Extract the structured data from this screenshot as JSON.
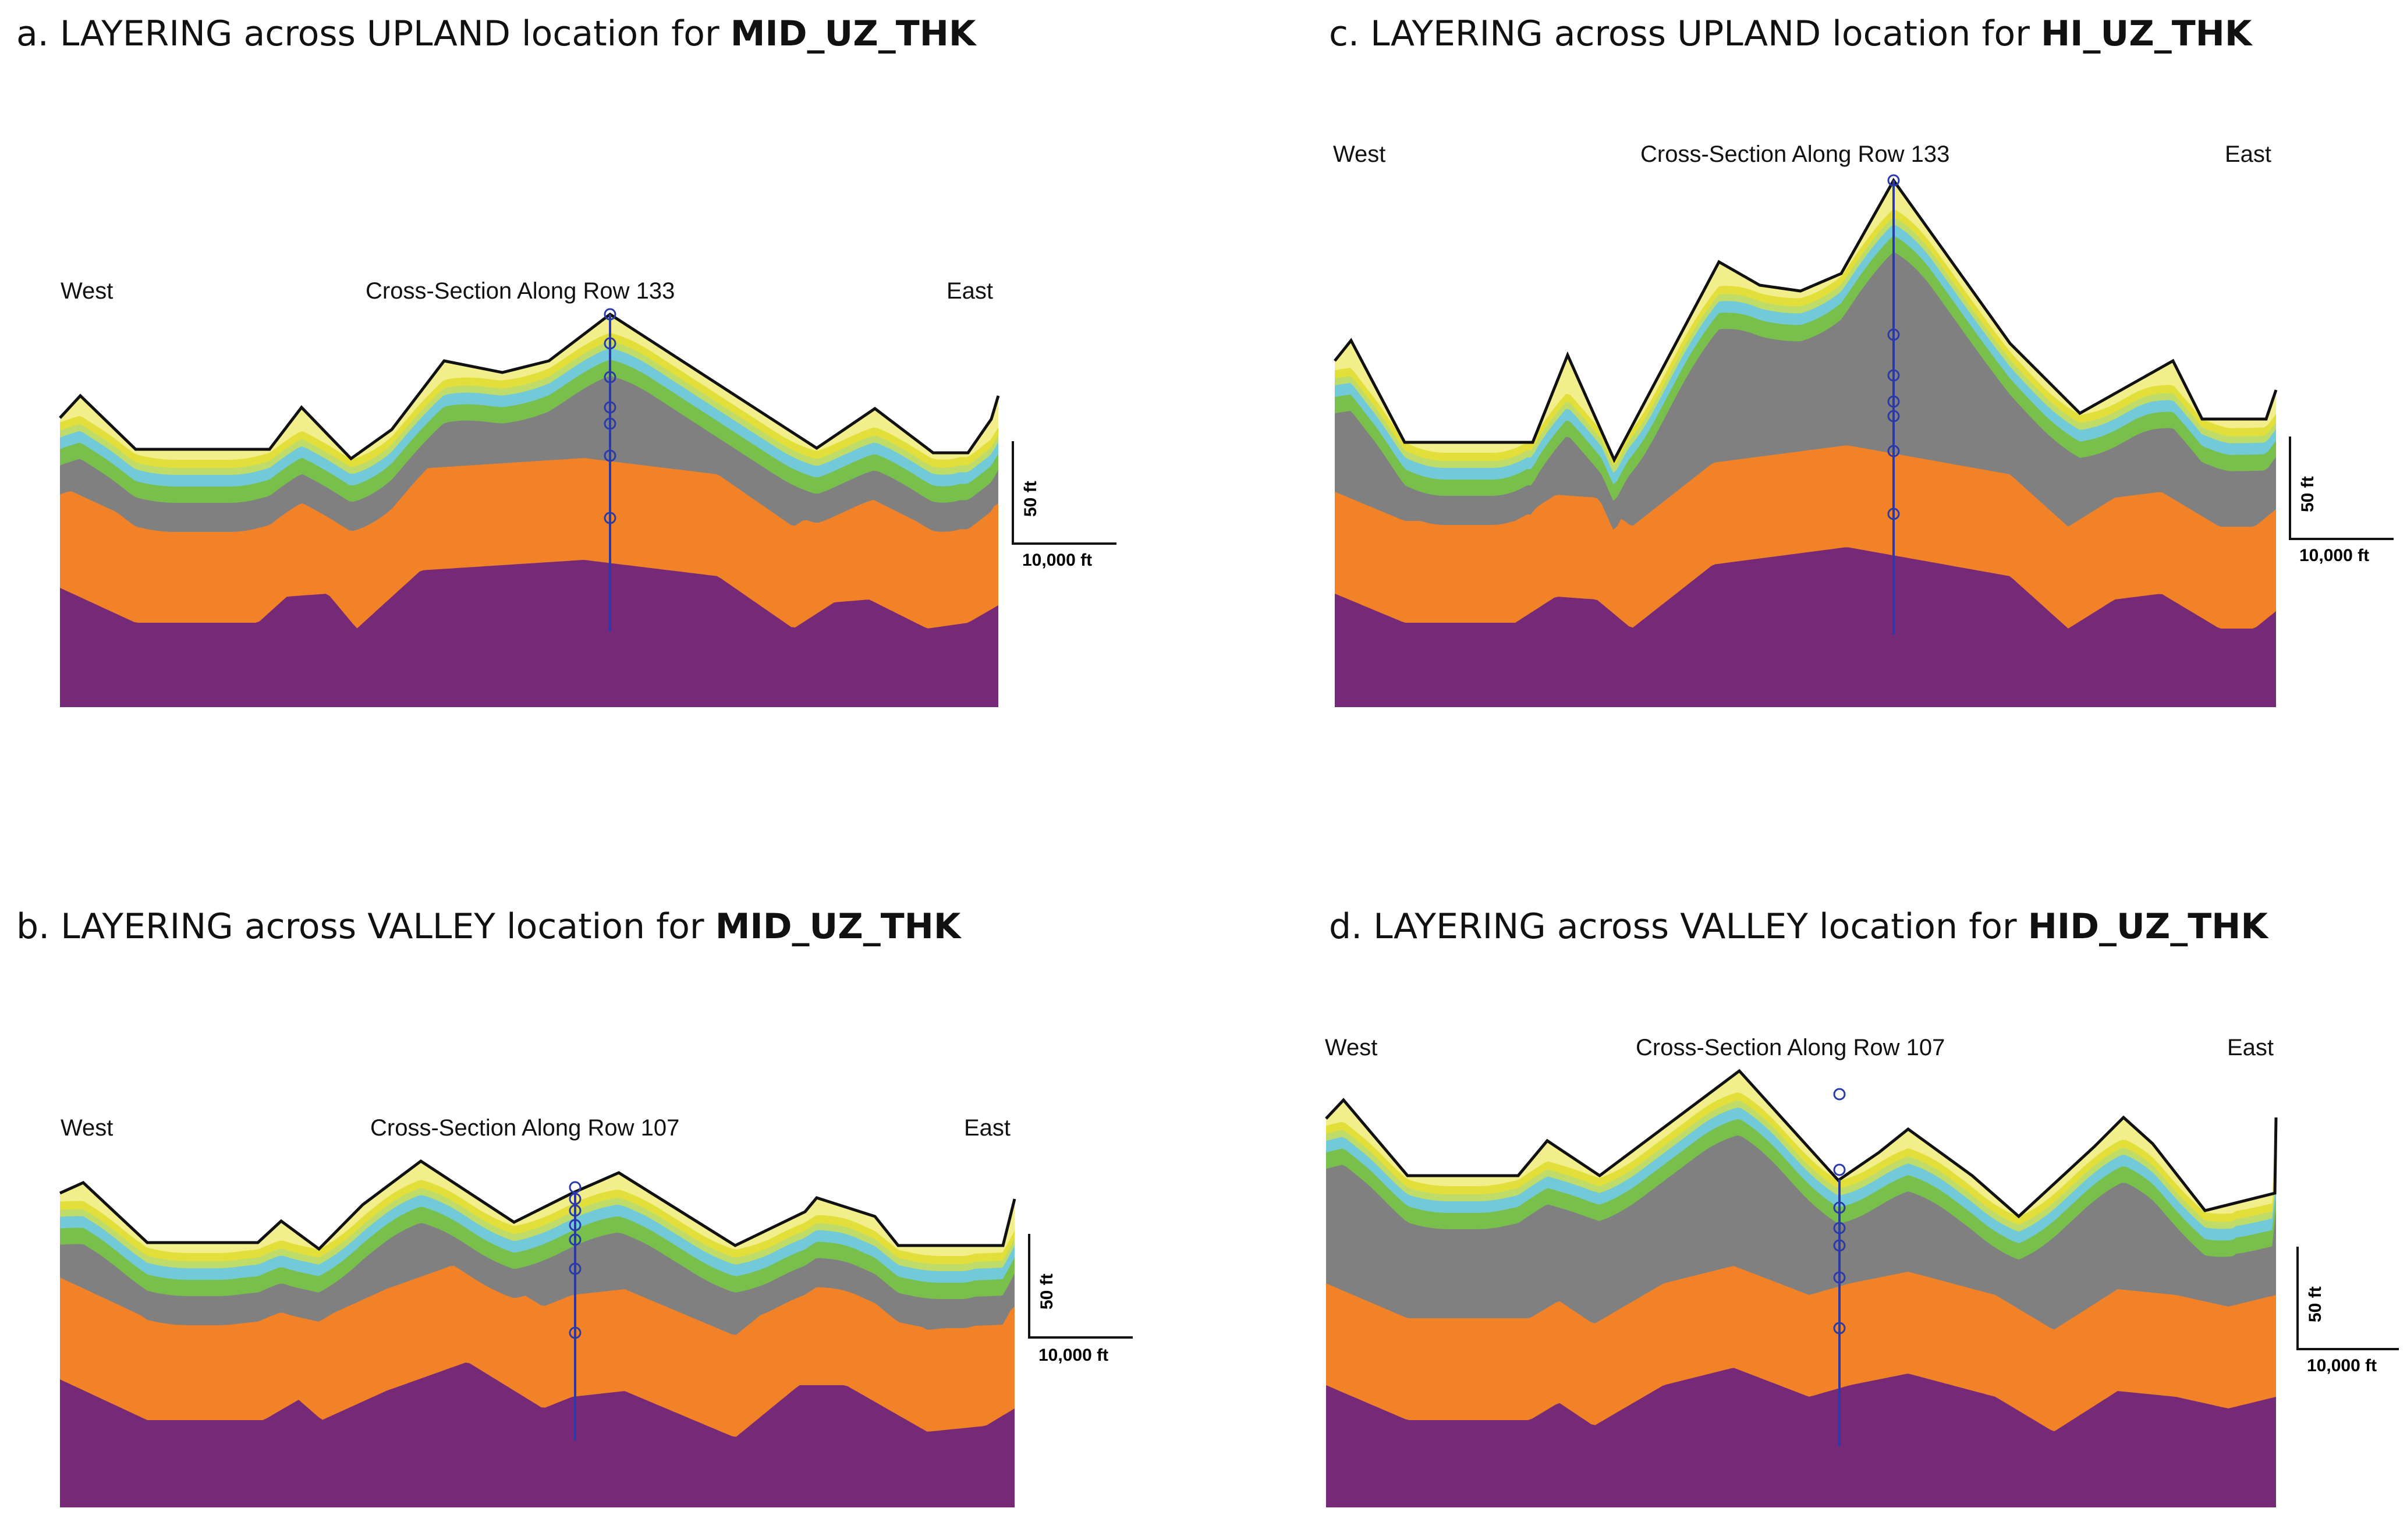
{
  "figure": {
    "panels": [
      {
        "id": "a",
        "caption_prefix": "a. LAYERING across UPLAND location for ",
        "caption_bold": "MID_UZ_THK",
        "west_label": "West",
        "section_title": "Cross-Section Along Row 133",
        "east_label": "East",
        "scale_vertical": "50 ft",
        "scale_horizontal": "10,000 ft"
      },
      {
        "id": "b",
        "caption_prefix": "b. LAYERING across VALLEY location for ",
        "caption_bold": "MID_UZ_THK",
        "west_label": "West",
        "section_title": "Cross-Section Along Row 107",
        "east_label": "East",
        "scale_vertical": "50 ft",
        "scale_horizontal": "10,000 ft"
      },
      {
        "id": "c",
        "caption_prefix": "c. LAYERING across UPLAND location for ",
        "caption_bold": "HI_UZ_THK",
        "west_label": "West",
        "section_title": "Cross-Section Along Row 133",
        "east_label": "East",
        "scale_vertical": "50 ft",
        "scale_horizontal": "10,000 ft"
      },
      {
        "id": "d",
        "caption_prefix": "d. LAYERING across VALLEY location for ",
        "caption_bold": "HID_UZ_THK",
        "west_label": "West",
        "section_title": "Cross-Section Along Row 107",
        "east_label": "East",
        "scale_vertical": "50 ft",
        "scale_horizontal": "10,000 ft"
      }
    ],
    "layer_colors": {
      "upper_zone": "#f2ee8c",
      "yellow_band": "#e3df3a",
      "light_green": "#bfdc68",
      "cyan": "#72c9d8",
      "green": "#78bf4c",
      "gray": "#808080",
      "orange": "#f28227",
      "purple": "#762976",
      "surface_line": "#111111",
      "well": "#2a3aa8"
    }
  }
}
